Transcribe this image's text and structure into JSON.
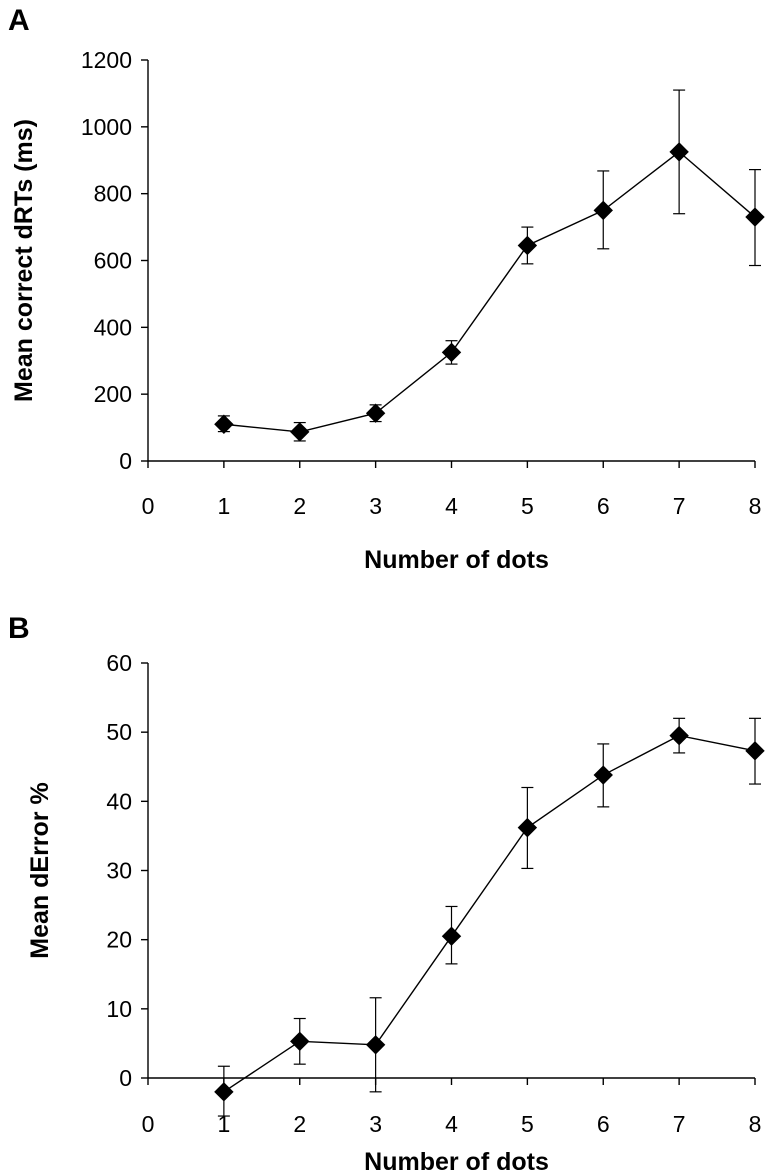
{
  "chart_data": [
    {
      "panel": "A",
      "type": "line",
      "ylabel": "Mean correct dRTs (ms)",
      "xlabel": "Number of dots",
      "xlim": [
        0,
        8
      ],
      "ylim": [
        0,
        1200
      ],
      "x_ticks": [
        0,
        1,
        2,
        3,
        4,
        5,
        6,
        7,
        8
      ],
      "y_ticks": [
        0,
        200,
        400,
        600,
        800,
        1000,
        1200
      ],
      "grid": false,
      "marker": "diamond",
      "series": [
        {
          "x": [
            1,
            2,
            3,
            4,
            5,
            6,
            7,
            8
          ],
          "values": [
            110,
            87,
            143,
            325,
            645,
            750,
            925,
            730
          ],
          "err_low": [
            88,
            60,
            118,
            290,
            590,
            635,
            740,
            585
          ],
          "err_high": [
            135,
            115,
            168,
            360,
            700,
            868,
            1110,
            872
          ]
        }
      ]
    },
    {
      "panel": "B",
      "type": "line",
      "ylabel": "Mean dError %",
      "xlabel": "Number of dots",
      "xlim": [
        0,
        8
      ],
      "ylim": [
        0,
        60
      ],
      "x_ticks": [
        0,
        1,
        2,
        3,
        4,
        5,
        6,
        7,
        8
      ],
      "y_ticks": [
        0,
        10,
        20,
        30,
        40,
        50,
        60
      ],
      "grid": false,
      "marker": "diamond",
      "series": [
        {
          "x": [
            1,
            2,
            3,
            4,
            5,
            6,
            7,
            8
          ],
          "values": [
            -2,
            5.3,
            4.8,
            20.5,
            36.2,
            43.8,
            49.5,
            47.3
          ],
          "err_low": [
            -5.5,
            2,
            -2,
            16.5,
            30.3,
            39.2,
            47,
            42.5
          ],
          "err_high": [
            1.7,
            8.6,
            11.6,
            24.8,
            42,
            48.3,
            52,
            52
          ]
        }
      ]
    }
  ]
}
